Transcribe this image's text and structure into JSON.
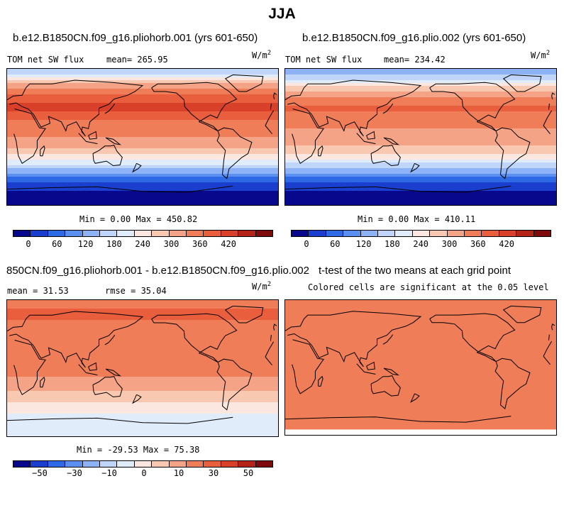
{
  "page_title": "JJA",
  "colors": {
    "ramp": [
      "#08088c",
      "#1a3fcf",
      "#2f6ae6",
      "#5b8ff0",
      "#8db3f6",
      "#bfd6fa",
      "#e1ecfb",
      "#fbe7df",
      "#f9c8b0",
      "#f4a386",
      "#ef7d57",
      "#e95e3c",
      "#d9402a",
      "#b52318",
      "#7d0b0b"
    ],
    "land_outline": "#000000"
  },
  "panels": {
    "p1": {
      "case": "b.e12.B1850CN.f09_g16.pliohorb.001 (yrs 601-650)",
      "variable": "TOM net SW flux",
      "stat": "mean= 265.95",
      "units_base": "W/m",
      "units_exp": "2",
      "minmax": "Min =   0.00 Max = 450.82"
    },
    "p2": {
      "case": "b.e12.B1850CN.f09_g16.plio.002 (yrs 601-650)",
      "variable": "TOM net SW flux",
      "stat": "mean= 234.42",
      "units_base": "W/m",
      "units_exp": "2",
      "minmax": "Min =   0.00 Max = 410.11"
    },
    "p3": {
      "case": "850CN.f09_g16.pliohorb.001 - b.e12.B1850CN.f09_g16.plio.002",
      "stat": "mean =  31.53",
      "rmse": "rmse =  35.04",
      "units_base": "W/m",
      "units_exp": "2",
      "minmax": "Min = -29.53 Max =  75.38"
    },
    "p4": {
      "title": "t-test of the two means at each grid point",
      "subtitle": "Colored cells are significant at the 0.05 level"
    }
  },
  "colorbar_top": [
    "0",
    "60",
    "120",
    "180",
    "240",
    "300",
    "360",
    "420"
  ],
  "colorbar_bottom": [
    "−50",
    "−30",
    "−10",
    "0",
    "10",
    "30",
    "50"
  ],
  "chart_data": [
    {
      "type": "heatmap",
      "title": "b.e12.B1850CN.f09_g16.pliohorb.001 (yrs 601-650)",
      "variable": "TOM net SW flux",
      "units": "W/m2",
      "mean": 265.95,
      "min": 0.0,
      "max": 450.82,
      "levels": [
        0,
        30,
        60,
        90,
        120,
        150,
        180,
        210,
        240,
        270,
        300,
        330,
        360,
        390,
        420
      ],
      "zonal_profile": [
        {
          "lat": 85,
          "value": 150
        },
        {
          "lat": 70,
          "value": 270
        },
        {
          "lat": 55,
          "value": 330
        },
        {
          "lat": 40,
          "value": 380
        },
        {
          "lat": 20,
          "value": 320
        },
        {
          "lat": 0,
          "value": 300
        },
        {
          "lat": -20,
          "value": 260
        },
        {
          "lat": -40,
          "value": 160
        },
        {
          "lat": -60,
          "value": 60
        },
        {
          "lat": -80,
          "value": 10
        }
      ]
    },
    {
      "type": "heatmap",
      "title": "b.e12.B1850CN.f09_g16.plio.002 (yrs 601-650)",
      "variable": "TOM net SW flux",
      "units": "W/m2",
      "mean": 234.42,
      "min": 0.0,
      "max": 410.11,
      "levels": [
        0,
        30,
        60,
        90,
        120,
        150,
        180,
        210,
        240,
        270,
        300,
        330,
        360,
        390,
        420
      ],
      "zonal_profile": [
        {
          "lat": 85,
          "value": 120
        },
        {
          "lat": 70,
          "value": 230
        },
        {
          "lat": 55,
          "value": 290
        },
        {
          "lat": 40,
          "value": 340
        },
        {
          "lat": 20,
          "value": 310
        },
        {
          "lat": 0,
          "value": 290
        },
        {
          "lat": -20,
          "value": 250
        },
        {
          "lat": -40,
          "value": 160
        },
        {
          "lat": -60,
          "value": 60
        },
        {
          "lat": -80,
          "value": 10
        }
      ]
    },
    {
      "type": "heatmap",
      "title": "850CN.f09_g16.pliohorb.001 - b.e12.B1850CN.f09_g16.plio.002",
      "units": "W/m2",
      "mean": 31.53,
      "rmse": 35.04,
      "min": -29.53,
      "max": 75.38,
      "levels": [
        -60,
        -50,
        -40,
        -30,
        -20,
        -10,
        0,
        10,
        20,
        30,
        40,
        50,
        60,
        70
      ],
      "zonal_profile": [
        {
          "lat": 85,
          "value": 45
        },
        {
          "lat": 70,
          "value": 55
        },
        {
          "lat": 55,
          "value": 45
        },
        {
          "lat": 40,
          "value": 40
        },
        {
          "lat": 20,
          "value": 50
        },
        {
          "lat": 0,
          "value": 45
        },
        {
          "lat": -20,
          "value": 35
        },
        {
          "lat": -40,
          "value": 25
        },
        {
          "lat": -60,
          "value": 10
        },
        {
          "lat": -80,
          "value": 2
        }
      ]
    },
    {
      "type": "heatmap",
      "title": "t-test of the two means at each grid point",
      "subtitle": "Colored cells are significant at the 0.05 level",
      "significant_fraction": 0.96
    }
  ]
}
